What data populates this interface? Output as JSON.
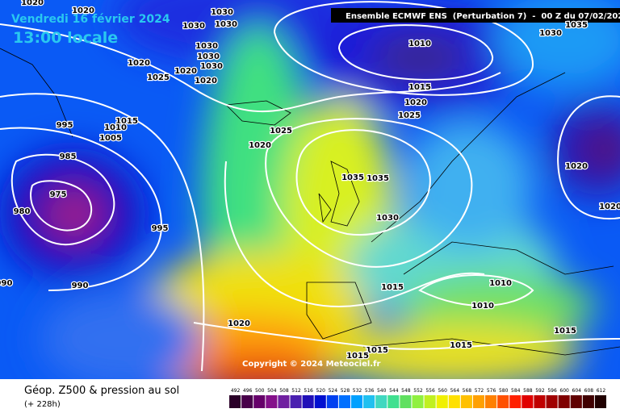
{
  "header": {
    "title": "Vendredi 16 février 2024",
    "time": "13:00 locale",
    "run": "Ensemble ECMWF ENS  (Perturbation 7)  -  00 Z du 07/02/2024",
    "copyright": "Copyright © 2024 Meteociel.fr"
  },
  "footer": {
    "field": "Géop. Z500 & pression au sol",
    "lead": "(+ 228h)"
  },
  "isobar_labels": [
    1020,
    1020,
    1030,
    1030,
    1030,
    1030,
    1020,
    1025,
    1020,
    1030,
    1030,
    1020,
    1010,
    1015,
    1020,
    1025,
    1030,
    1035,
    1015,
    1010,
    1005,
    995,
    985,
    975,
    980,
    990,
    995,
    990,
    1025,
    1020,
    1035,
    1035,
    1030,
    1020,
    1020,
    1015,
    1010,
    1010,
    1015,
    1020,
    1015,
    1015,
    1015
  ],
  "colorbar": {
    "levels": [
      492,
      496,
      500,
      504,
      508,
      512,
      516,
      520,
      524,
      528,
      532,
      536,
      540,
      544,
      548,
      552,
      556,
      560,
      564,
      568,
      572,
      576,
      580,
      584,
      588,
      592,
      596,
      600,
      604,
      608,
      612
    ],
    "colors": [
      "#2a0028",
      "#48004a",
      "#66006a",
      "#84108a",
      "#7020a0",
      "#4a20b0",
      "#2010b8",
      "#0010d0",
      "#0040f0",
      "#0070ff",
      "#00a0ff",
      "#20c0f0",
      "#40d8c0",
      "#40e090",
      "#60e060",
      "#90f040",
      "#c0f020",
      "#f0f000",
      "#ffe000",
      "#ffc000",
      "#ffa000",
      "#ff8000",
      "#ff5000",
      "#ff2000",
      "#e00000",
      "#c00000",
      "#a00000",
      "#800000",
      "#600000",
      "#400000",
      "#200000"
    ]
  }
}
